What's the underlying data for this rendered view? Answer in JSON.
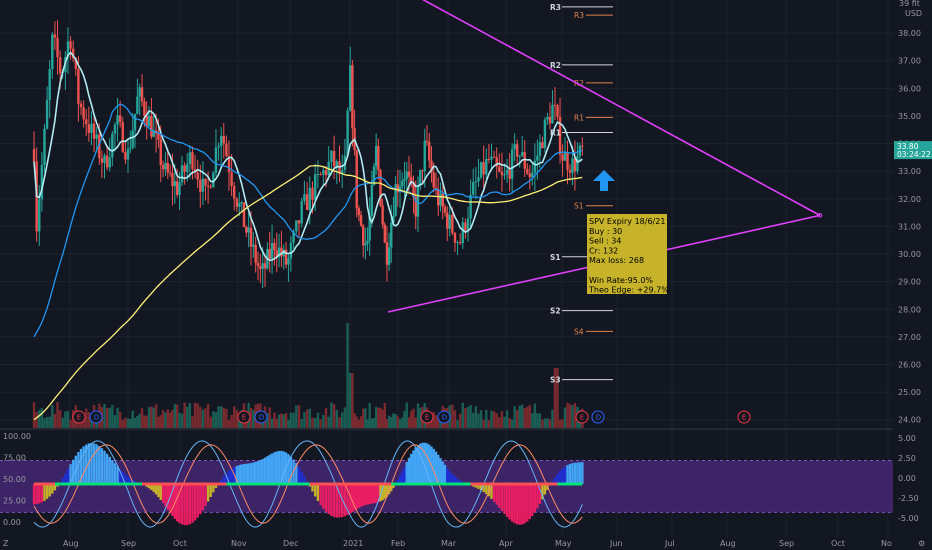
{
  "ui": {
    "currency": "USD",
    "scale_label": "39 fit",
    "price_tag": "33.80",
    "countdown": "03:24:22",
    "corner_left": "Z",
    "corner_right": "⚙"
  },
  "chart_data": {
    "type": "candlestick",
    "xlabels": [
      "Aug",
      "Sep",
      "Oct",
      "Nov",
      "Dec",
      "2021",
      "Feb",
      "Mar",
      "Apr",
      "May",
      "Jun",
      "Jul",
      "Aug",
      "Sep",
      "Oct",
      "No"
    ],
    "price_axis": {
      "ticks": [
        "38.00",
        "37.00",
        "36.00",
        "35.00",
        "34.00",
        "33.00",
        "32.00",
        "31.00",
        "30.00",
        "29.00",
        "28.00",
        "27.00",
        "26.00",
        "25.00",
        "24.00"
      ],
      "range": [
        23.7,
        39.2
      ]
    },
    "oscillator_axis_left": {
      "ticks": [
        "100.00",
        "75.00",
        "50.00",
        "25.00",
        "0.00"
      ]
    },
    "oscillator_axis_right": {
      "ticks": [
        "5.00",
        "2.50",
        "0.00",
        "-2.50",
        "-5.00"
      ]
    },
    "pivots": [
      {
        "label": "R3",
        "price": 38.95,
        "color": "cyan"
      },
      {
        "label": "R3",
        "price": 38.65,
        "color": "orange"
      },
      {
        "label": "R2",
        "price": 36.85,
        "color": "cyan"
      },
      {
        "label": "R2",
        "price": 36.2,
        "color": "orange"
      },
      {
        "label": "R1",
        "price": 34.4,
        "color": "cyan"
      },
      {
        "label": "R1",
        "price": 34.95,
        "color": "orange"
      },
      {
        "label": "S1",
        "price": 31.75,
        "color": "orange"
      },
      {
        "label": "S1",
        "price": 29.9,
        "color": "cyan"
      },
      {
        "label": "S2",
        "price": 27.95,
        "color": "cyan"
      },
      {
        "label": "S4",
        "price": 27.2,
        "color": "orange"
      },
      {
        "label": "S3",
        "price": 25.45,
        "color": "cyan"
      }
    ],
    "triangle": {
      "upper": [
        [
          "Aug-2020",
          39.5
        ],
        [
          "Sep-2021",
          31.4
        ]
      ],
      "lower": [
        [
          "Jan-2021",
          27.9
        ],
        [
          "Sep-2021",
          31.4
        ]
      ]
    },
    "annotation": {
      "lines": [
        "SPV Expiry 18/6/21",
        "Buy : 30",
        "Sell : 34",
        "Cr: 132",
        "Max loss: 268",
        "",
        "Win Rate:95.0%",
        "Theo Edge: +29.7%"
      ]
    },
    "earnings_markers": [
      "E",
      "D",
      "E",
      "D",
      "E",
      "D",
      "E",
      "D",
      "E"
    ]
  }
}
